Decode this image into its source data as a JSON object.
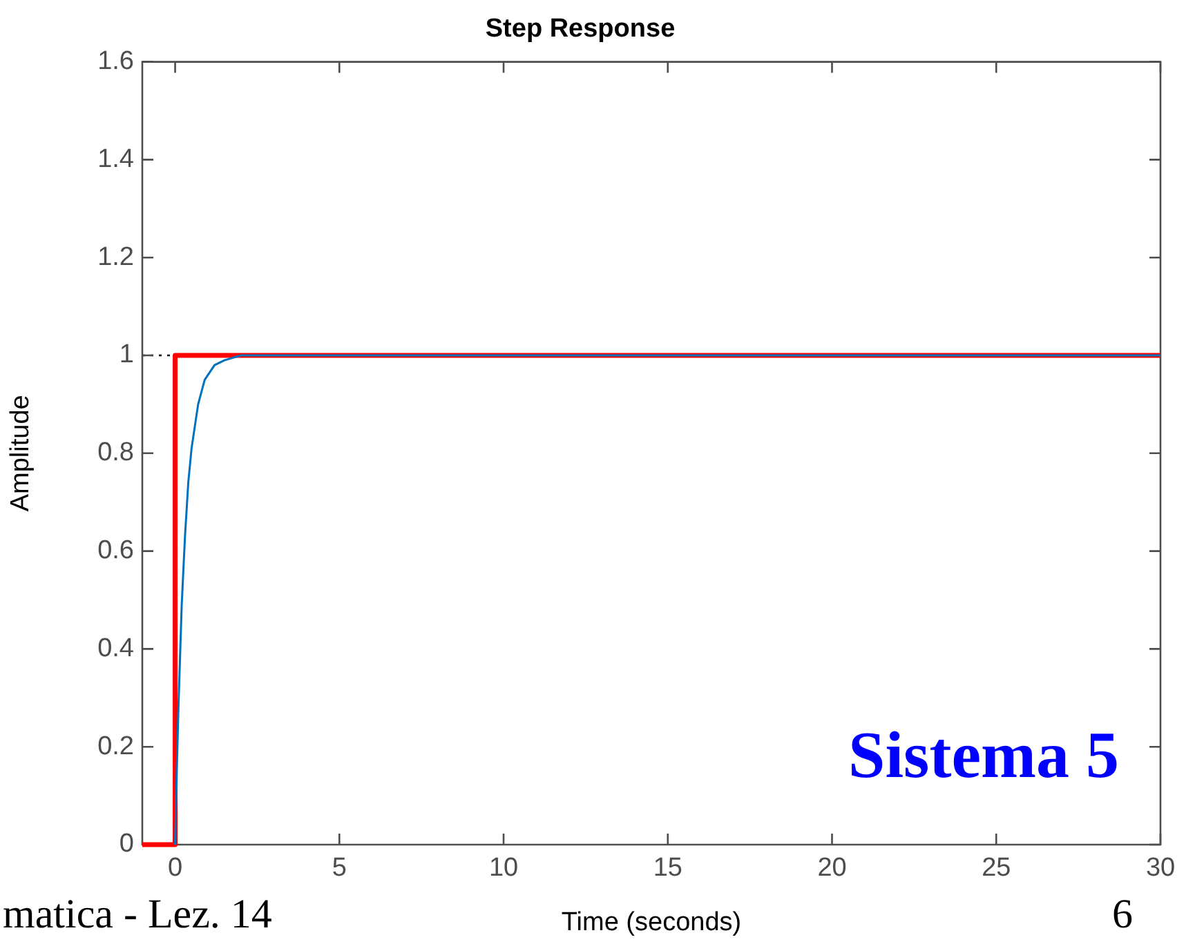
{
  "chart_data": {
    "type": "line",
    "title": "Step Response",
    "xlabel": "Time (seconds)",
    "ylabel": "Amplitude",
    "xlim": [
      -1,
      30
    ],
    "xticks": [
      0,
      5,
      10,
      15,
      20,
      25,
      30
    ],
    "ylim": [
      0,
      1.6
    ],
    "yticks": [
      0,
      0.2,
      0.4,
      0.6,
      0.8,
      1,
      1.2,
      1.4,
      1.6
    ],
    "grid": false,
    "legend": false,
    "series": [
      {
        "color": "#0072bd",
        "x": [
          0,
          0.05,
          0.1,
          0.2,
          0.3,
          0.4,
          0.5,
          0.7,
          0.9,
          1.2,
          1.5,
          2,
          30
        ],
        "values": [
          0,
          0.15,
          0.28,
          0.49,
          0.63,
          0.74,
          0.81,
          0.9,
          0.95,
          0.98,
          0.99,
          1,
          1
        ]
      },
      {
        "color": "#ff0000",
        "x": [
          -1,
          0,
          0,
          30
        ],
        "values": [
          0,
          0,
          1,
          1
        ]
      }
    ],
    "ref_lines": [
      {
        "axis": "y",
        "value": 1,
        "color": "#000000",
        "line_style": "dotted"
      }
    ],
    "annotations": [
      "Sistema 5",
      "matica - Lez. 14",
      "6"
    ]
  }
}
